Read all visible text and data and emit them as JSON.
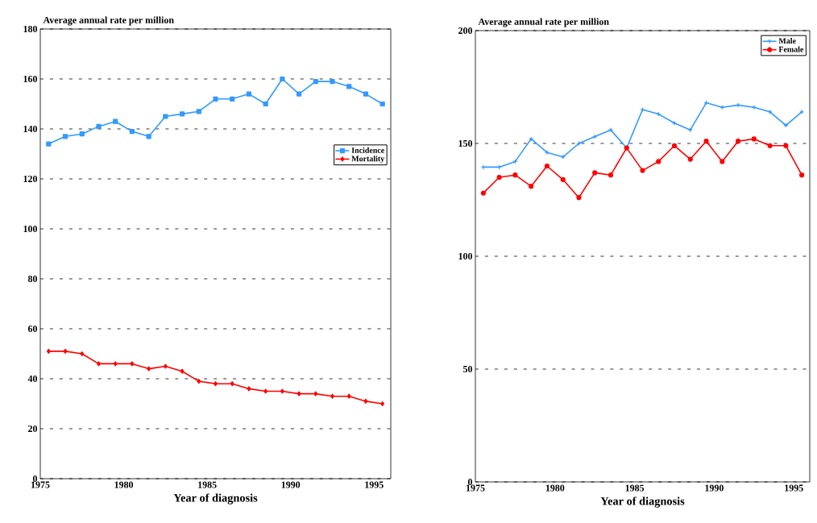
{
  "chart_data": [
    {
      "type": "line",
      "ylabel": "Average annual rate per million",
      "xlabel": "Year of diagnosis",
      "xlim": [
        1975,
        1996
      ],
      "xticks": [
        1975,
        1980,
        1985,
        1990,
        1995
      ],
      "ylim": [
        0,
        180
      ],
      "yticks": [
        0,
        20,
        40,
        60,
        80,
        100,
        120,
        140,
        160,
        180
      ],
      "grid": "y",
      "legend": "right",
      "x": [
        1975.5,
        1976.5,
        1977.5,
        1978.5,
        1979.5,
        1980.5,
        1981.5,
        1982.5,
        1983.5,
        1984.5,
        1985.5,
        1986.5,
        1987.5,
        1988.5,
        1989.5,
        1990.5,
        1991.5,
        1992.5,
        1993.5,
        1994.5,
        1995.5
      ],
      "series": [
        {
          "name": "Incidence",
          "color": "#3399ff",
          "marker": "square",
          "values": [
            134,
            137,
            138,
            141,
            143,
            139,
            137,
            145,
            146,
            147,
            152,
            152,
            154,
            150,
            160,
            154,
            159,
            159,
            157,
            154,
            150
          ]
        },
        {
          "name": "Mortality",
          "color": "#ff0000",
          "marker": "diamond",
          "values": [
            51,
            51,
            50,
            46,
            46,
            46,
            44,
            45,
            43,
            39,
            38,
            38,
            36,
            35,
            35,
            34,
            34,
            33,
            33,
            31,
            30
          ]
        }
      ]
    },
    {
      "type": "line",
      "ylabel": "Average annual rate per million",
      "xlabel": "Year of diagnosis",
      "xlim": [
        1975,
        1996
      ],
      "xticks": [
        1975,
        1980,
        1985,
        1990,
        1995
      ],
      "ylim": [
        0,
        200
      ],
      "yticks": [
        0,
        50,
        100,
        150,
        200
      ],
      "grid": "y",
      "legend": "top right",
      "x": [
        1975.5,
        1976.5,
        1977.5,
        1978.5,
        1979.5,
        1980.5,
        1981.5,
        1982.5,
        1983.5,
        1984.5,
        1985.5,
        1986.5,
        1987.5,
        1988.5,
        1989.5,
        1990.5,
        1991.5,
        1992.5,
        1993.5,
        1994.5,
        1995.5
      ],
      "series": [
        {
          "name": "Male",
          "color": "#3399ff",
          "marker": "cross",
          "values": [
            139.5,
            139.5,
            142,
            152,
            146,
            144,
            150,
            153,
            156,
            148,
            165,
            163,
            159,
            156,
            168,
            166,
            167,
            166,
            164,
            158,
            164
          ]
        },
        {
          "name": "Female",
          "color": "#ff0000",
          "marker": "circle",
          "values": [
            128,
            135,
            136,
            131,
            140,
            134,
            126,
            137,
            136,
            148,
            138,
            142,
            149,
            143,
            151,
            142,
            151,
            152,
            149,
            149,
            136
          ]
        }
      ]
    }
  ]
}
